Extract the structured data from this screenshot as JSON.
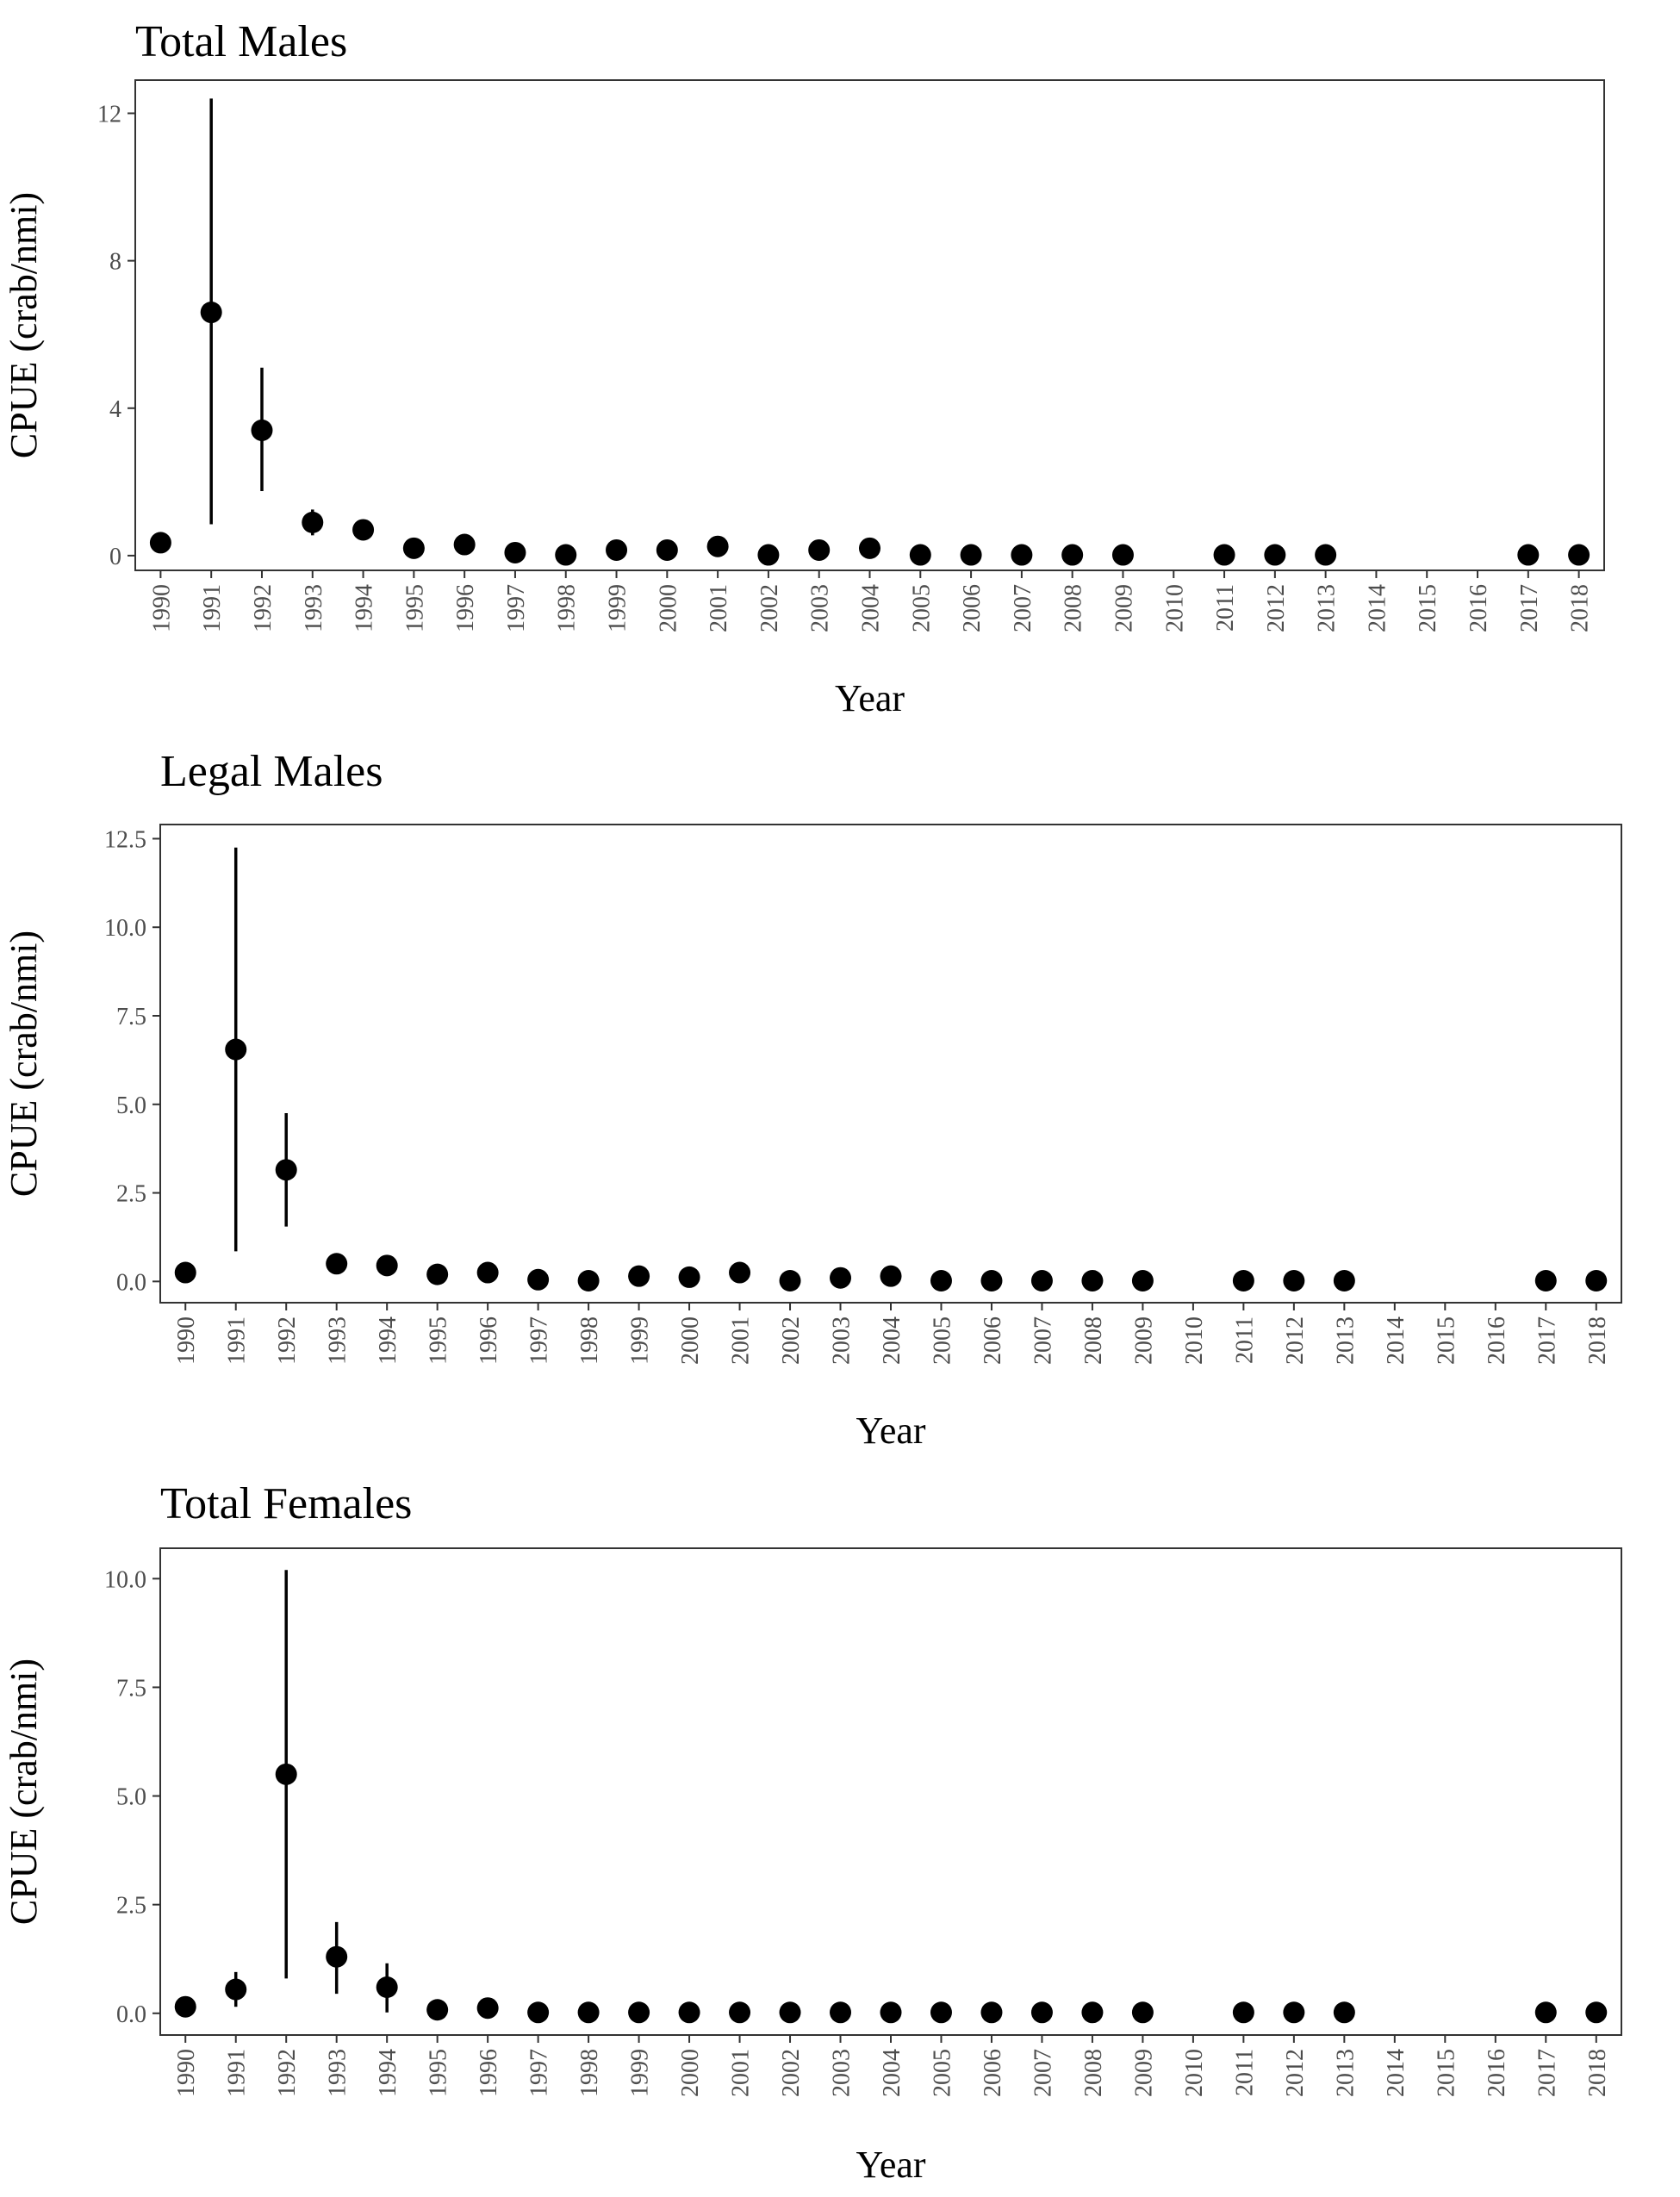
{
  "chart_data": [
    {
      "type": "scatter",
      "title": "Total Males",
      "xlabel": "Year",
      "ylabel": "CPUE (crab/nmi)",
      "ylim": [
        -0.4,
        12.9
      ],
      "yticks": [
        0,
        4,
        8,
        12
      ],
      "ytick_labels": [
        "0",
        "4",
        "8",
        "12"
      ],
      "categories": [
        "1990",
        "1991",
        "1992",
        "1993",
        "1994",
        "1995",
        "1996",
        "1997",
        "1998",
        "1999",
        "2000",
        "2001",
        "2002",
        "2003",
        "2004",
        "2005",
        "2006",
        "2007",
        "2008",
        "2009",
        "2010",
        "2011",
        "2012",
        "2013",
        "2014",
        "2015",
        "2016",
        "2017",
        "2018"
      ],
      "values": [
        0.35,
        6.6,
        3.4,
        0.9,
        0.7,
        0.2,
        0.3,
        0.08,
        0.02,
        0.15,
        0.15,
        0.25,
        0.02,
        0.15,
        0.2,
        0.02,
        0.02,
        0.02,
        0.02,
        0.02,
        null,
        0.02,
        0.02,
        0.02,
        null,
        null,
        null,
        0.02,
        0.02
      ],
      "lower": [
        null,
        0.85,
        1.75,
        0.55,
        null,
        null,
        null,
        null,
        null,
        null,
        null,
        null,
        null,
        null,
        null,
        null,
        null,
        null,
        null,
        null,
        null,
        null,
        null,
        null,
        null,
        null,
        null,
        null,
        null
      ],
      "upper": [
        null,
        12.4,
        5.1,
        1.25,
        null,
        null,
        null,
        null,
        null,
        null,
        null,
        null,
        null,
        null,
        null,
        null,
        null,
        null,
        null,
        null,
        null,
        null,
        null,
        null,
        null,
        null,
        null,
        null,
        null
      ],
      "grid": false,
      "legend": "none"
    },
    {
      "type": "scatter",
      "title": "Legal Males",
      "xlabel": "Year",
      "ylabel": "CPUE (crab/nmi)",
      "ylim": [
        -0.6,
        12.9
      ],
      "yticks": [
        0,
        2.5,
        5,
        7.5,
        10,
        12.5
      ],
      "ytick_labels": [
        "0.0",
        "2.5",
        "5.0",
        "7.5",
        "10.0",
        "12.5"
      ],
      "categories": [
        "1990",
        "1991",
        "1992",
        "1993",
        "1994",
        "1995",
        "1996",
        "1997",
        "1998",
        "1999",
        "2000",
        "2001",
        "2002",
        "2003",
        "2004",
        "2005",
        "2006",
        "2007",
        "2008",
        "2009",
        "2010",
        "2011",
        "2012",
        "2013",
        "2014",
        "2015",
        "2016",
        "2017",
        "2018"
      ],
      "values": [
        0.25,
        6.55,
        3.15,
        0.5,
        0.45,
        0.2,
        0.25,
        0.05,
        0.02,
        0.15,
        0.12,
        0.25,
        0.02,
        0.1,
        0.15,
        0.02,
        0.02,
        0.02,
        0.02,
        0.02,
        null,
        0.02,
        0.02,
        0.02,
        null,
        null,
        null,
        0.02,
        0.02
      ],
      "lower": [
        null,
        0.85,
        1.55,
        null,
        null,
        null,
        null,
        null,
        null,
        null,
        null,
        null,
        null,
        null,
        null,
        null,
        null,
        null,
        null,
        null,
        null,
        null,
        null,
        null,
        null,
        null,
        null,
        null,
        null
      ],
      "upper": [
        null,
        12.25,
        4.75,
        null,
        null,
        null,
        null,
        null,
        null,
        null,
        null,
        null,
        null,
        null,
        null,
        null,
        null,
        null,
        null,
        null,
        null,
        null,
        null,
        null,
        null,
        null,
        null,
        null,
        null
      ],
      "grid": false,
      "legend": "none"
    },
    {
      "type": "scatter",
      "title": "Total Females",
      "xlabel": "Year",
      "ylabel": "CPUE (crab/nmi)",
      "ylim": [
        -0.5,
        10.7
      ],
      "yticks": [
        0,
        2.5,
        5,
        7.5,
        10
      ],
      "ytick_labels": [
        "0.0",
        "2.5",
        "5.0",
        "7.5",
        "10.0"
      ],
      "categories": [
        "1990",
        "1991",
        "1992",
        "1993",
        "1994",
        "1995",
        "1996",
        "1997",
        "1998",
        "1999",
        "2000",
        "2001",
        "2002",
        "2003",
        "2004",
        "2005",
        "2006",
        "2007",
        "2008",
        "2009",
        "2010",
        "2011",
        "2012",
        "2013",
        "2014",
        "2015",
        "2016",
        "2017",
        "2018"
      ],
      "values": [
        0.15,
        0.55,
        5.5,
        1.3,
        0.6,
        0.08,
        0.12,
        0.02,
        0.02,
        0.02,
        0.02,
        0.02,
        0.02,
        0.02,
        0.02,
        0.02,
        0.02,
        0.02,
        0.02,
        0.02,
        null,
        0.02,
        0.02,
        0.02,
        null,
        null,
        null,
        0.02,
        0.02
      ],
      "lower": [
        null,
        0.15,
        0.8,
        0.45,
        0.02,
        null,
        null,
        null,
        null,
        null,
        null,
        null,
        null,
        null,
        null,
        null,
        null,
        null,
        null,
        null,
        null,
        null,
        null,
        null,
        null,
        null,
        null,
        null,
        null
      ],
      "upper": [
        null,
        0.95,
        10.2,
        2.1,
        1.15,
        null,
        null,
        null,
        null,
        null,
        null,
        null,
        null,
        null,
        null,
        null,
        null,
        null,
        null,
        null,
        null,
        null,
        null,
        null,
        null,
        null,
        null,
        null,
        null
      ],
      "grid": false,
      "legend": "none"
    }
  ]
}
